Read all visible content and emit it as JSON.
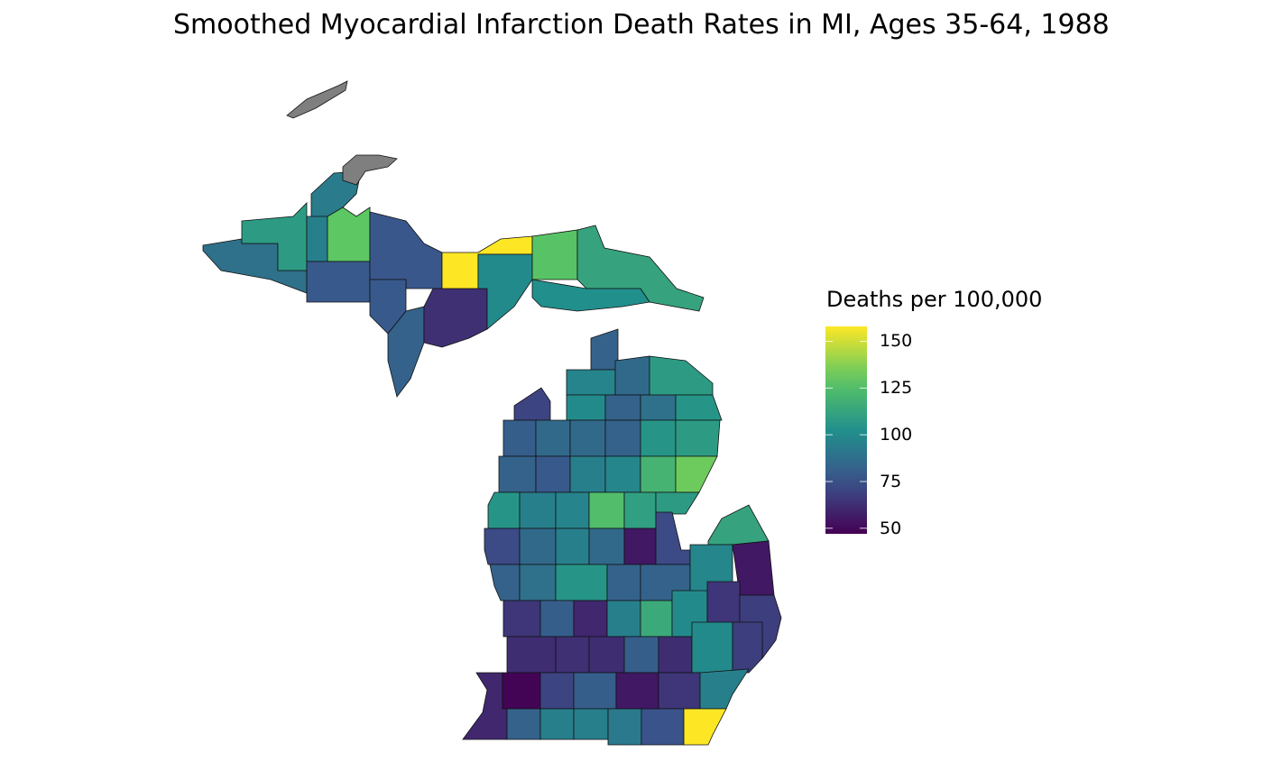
{
  "title": "Smoothed Myocardial Infarction Death Rates in MI, Ages 35-64, 1988",
  "chart_data": {
    "type": "choropleth",
    "title": "Smoothed Myocardial Infarction Death Rates in MI, Ages 35-64, 1988",
    "legend": {
      "title": "Deaths per 100,000",
      "ticks": [
        "150",
        "125",
        "100",
        "75",
        "50"
      ],
      "tick_values": [
        150,
        125,
        100,
        75,
        50
      ],
      "range": [
        47,
        158
      ],
      "palette": "viridis",
      "position": "right"
    },
    "missing_color": "#7f7f7f",
    "values": [
      93,
      88,
      108,
      95,
      130,
      78,
      77,
      78,
      82,
      63,
      158,
      100,
      128,
      112,
      102,
      82,
      97,
      85,
      108,
      70,
      100,
      82,
      88,
      105,
      80,
      85,
      85,
      82,
      105,
      108,
      82,
      78,
      95,
      98,
      120,
      133,
      105,
      95,
      97,
      125,
      110,
      108,
      72,
      85,
      95,
      85,
      55,
      72,
      112,
      82,
      88,
      105,
      82,
      82,
      98,
      55,
      65,
      80,
      60,
      95,
      115,
      100,
      65,
      68,
      62,
      63,
      62,
      80,
      62,
      100,
      68,
      60,
      48,
      70,
      80,
      55,
      65,
      95,
      82,
      95,
      95,
      92,
      75
    ]
  }
}
